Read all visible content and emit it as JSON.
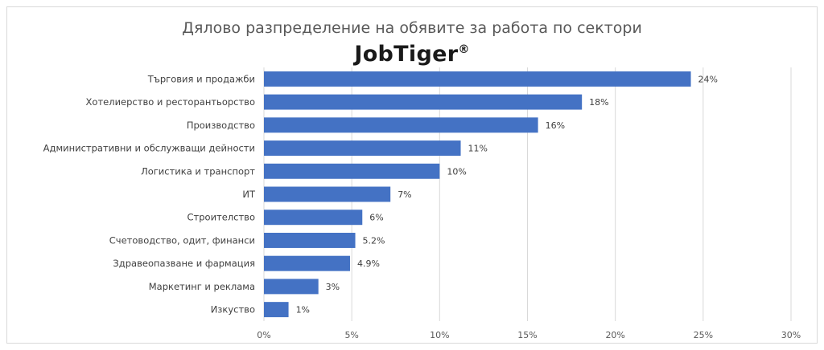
{
  "chart_data": {
    "type": "bar",
    "orientation": "horizontal",
    "title": "Дялово разпределение на обявите за работа по сектори",
    "logo_text": "JobTiger",
    "logo_mark": "®",
    "categories": [
      "Търговия и продажби",
      "Хотелиерство и ресторантьорство",
      "Производство",
      "Административни и обслужващи дейности",
      "Логистика и транспорт",
      "ИТ",
      "Строителство",
      "Счетоводство, одит, финанси",
      "Здравеопазване и фармация",
      "Маркетинг и реклама",
      "Изкуство"
    ],
    "values": [
      24.3,
      18.1,
      15.6,
      11.2,
      10.0,
      7.2,
      5.6,
      5.2,
      4.9,
      3.1,
      1.4
    ],
    "data_labels": [
      "24%",
      "18%",
      "16%",
      "11%",
      "10%",
      "7%",
      "6%",
      "5.2%",
      "4.9%",
      "3%",
      "1%"
    ],
    "xlim": [
      0,
      30
    ],
    "x_ticks": [
      0,
      5,
      10,
      15,
      20,
      25,
      30
    ],
    "x_tick_labels": [
      "0%",
      "5%",
      "10%",
      "15%",
      "20%",
      "25%",
      "30%"
    ],
    "bar_color": "#4472c4",
    "gridlines": "vertical",
    "legend": "none"
  }
}
